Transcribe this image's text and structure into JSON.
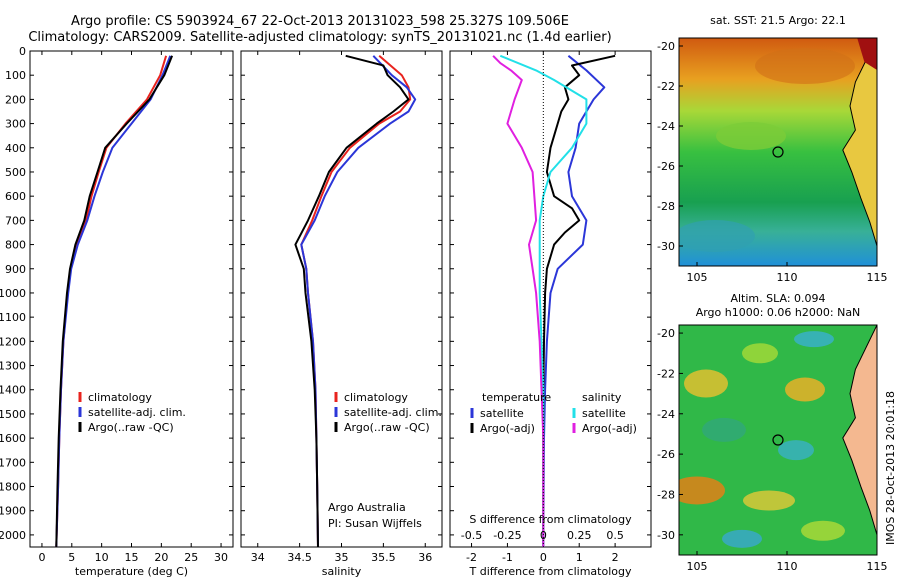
{
  "title_line1": "Argo profile: CS 5903924_67 22-Oct-2013 20131023_598 25.327S 109.506E",
  "title_line2": "Climatology: CARS2009. Satellite-adjusted climatology: synTS_20131021.nc (1.4d earlier)",
  "colors": {
    "climatology": "#e8231e",
    "satellite": "#2b36d8",
    "argo": "#000000",
    "sat_salinity": "#22e0e8",
    "argo_adj_salinity": "#e020e0"
  },
  "chart_data": [
    {
      "type": "line",
      "name": "temperature",
      "xlabel": "temperature (deg C)",
      "ylabel": "",
      "xlim": [
        -2,
        32
      ],
      "ylim": [
        2050,
        0
      ],
      "xticks": [
        "0",
        "5",
        "10",
        "15",
        "20",
        "25",
        "30"
      ],
      "yticks": [
        "0",
        "100",
        "200",
        "300",
        "400",
        "500",
        "600",
        "700",
        "800",
        "900",
        "1000",
        "1100",
        "1200",
        "1300",
        "1400",
        "1500",
        "1600",
        "1700",
        "1800",
        "1900",
        "2000"
      ],
      "legend": [
        "climatology",
        "satellite-adj. clim.",
        "Argo(..raw -QC)"
      ],
      "series": [
        {
          "name": "climatology",
          "depth": [
            20,
            100,
            200,
            300,
            400,
            500,
            600,
            700,
            800,
            900,
            1000,
            1200,
            1400,
            1600,
            1800,
            2050
          ],
          "values": [
            20.8,
            19.8,
            17.6,
            14.0,
            10.8,
            9.5,
            8.3,
            7.4,
            5.8,
            4.8,
            4.3,
            3.6,
            3.2,
            2.9,
            2.7,
            2.4
          ]
        },
        {
          "name": "satellite-adj. clim.",
          "depth": [
            20,
            100,
            200,
            300,
            400,
            500,
            600,
            700,
            800,
            900,
            1000,
            1200,
            1400,
            1600,
            1800,
            2050
          ],
          "values": [
            21.5,
            20.2,
            18.2,
            15.0,
            11.8,
            10.2,
            8.8,
            7.6,
            6.0,
            4.9,
            4.4,
            3.6,
            3.2,
            2.9,
            2.7,
            2.4
          ]
        },
        {
          "name": "Argo(..raw -QC)",
          "depth": [
            20,
            100,
            200,
            300,
            400,
            500,
            600,
            700,
            800,
            900,
            1000,
            1200,
            1400,
            1600,
            1800,
            2050
          ],
          "values": [
            21.8,
            20.5,
            18.0,
            14.2,
            10.6,
            9.3,
            8.0,
            7.1,
            5.6,
            4.7,
            4.2,
            3.5,
            3.1,
            2.8,
            2.6,
            2.4
          ]
        }
      ]
    },
    {
      "type": "line",
      "name": "salinity",
      "xlabel": "salinity",
      "ylabel": "",
      "xlim": [
        33.8,
        36.2
      ],
      "ylim": [
        2050,
        0
      ],
      "xticks": [
        "34",
        "34.5",
        "35",
        "35.5",
        "36"
      ],
      "legend": [
        "climatology",
        "satellite-adj. clim.",
        "Argo(..raw -QC)"
      ],
      "annotation": [
        "Argo Australia",
        "PI: Susan Wijffels"
      ],
      "series": [
        {
          "name": "climatology",
          "depth": [
            20,
            100,
            150,
            200,
            250,
            300,
            400,
            500,
            600,
            700,
            800,
            900,
            1000,
            1200,
            1400,
            1600,
            1800,
            2050
          ],
          "values": [
            35.45,
            35.72,
            35.8,
            35.82,
            35.7,
            35.45,
            35.1,
            34.88,
            34.76,
            34.65,
            34.52,
            34.58,
            34.6,
            34.66,
            34.69,
            34.7,
            34.71,
            34.72
          ]
        },
        {
          "name": "satellite-adj. clim.",
          "depth": [
            20,
            100,
            150,
            200,
            250,
            300,
            400,
            500,
            600,
            700,
            800,
            900,
            1000,
            1200,
            1400,
            1600,
            1800,
            2050
          ],
          "values": [
            35.38,
            35.6,
            35.78,
            35.88,
            35.8,
            35.58,
            35.2,
            34.95,
            34.8,
            34.68,
            34.52,
            34.58,
            34.6,
            34.66,
            34.69,
            34.7,
            34.71,
            34.72
          ]
        },
        {
          "name": "Argo(..raw -QC)",
          "depth": [
            20,
            60,
            100,
            150,
            200,
            250,
            300,
            400,
            500,
            600,
            700,
            800,
            900,
            1000,
            1200,
            1400,
            1600,
            1800,
            2050
          ],
          "values": [
            35.05,
            35.5,
            35.55,
            35.7,
            35.8,
            35.62,
            35.42,
            35.06,
            34.85,
            34.73,
            34.6,
            34.45,
            34.55,
            34.57,
            34.64,
            34.68,
            34.7,
            34.71,
            34.72
          ]
        }
      ]
    },
    {
      "type": "line",
      "name": "difference",
      "xlabel_top": "S difference from climatology",
      "xlabel": "T difference from climatology",
      "xlim": [
        -2.6,
        3.0
      ],
      "ylim": [
        2050,
        0
      ],
      "xticks": [
        "-2",
        "-1",
        "0",
        "1",
        "2"
      ],
      "xticks_top": [
        "-0.5",
        "-0.25",
        "0",
        "0.25",
        "0.5"
      ],
      "legend_left_title": "temperature",
      "legend_right_title": "salinity",
      "legend": [
        "satellite",
        "Argo(-adj)",
        "satellite",
        "Argo(-adj)"
      ],
      "series": [
        {
          "name": "T satellite",
          "depth": [
            20,
            80,
            150,
            200,
            300,
            400,
            500,
            600,
            700,
            800,
            900,
            1000,
            1200,
            1400,
            1600,
            2050
          ],
          "values": [
            0.7,
            1.2,
            1.7,
            1.4,
            1.0,
            0.9,
            0.7,
            0.8,
            1.2,
            1.1,
            0.4,
            0.2,
            0.1,
            0.05,
            0.02,
            0.0
          ]
        },
        {
          "name": "T Argo(-adj)",
          "depth": [
            20,
            60,
            100,
            150,
            200,
            250,
            300,
            400,
            500,
            600,
            650,
            700,
            750,
            800,
            900,
            1000,
            1200,
            1400,
            1600,
            2050
          ],
          "values": [
            2.0,
            0.8,
            1.0,
            0.6,
            0.7,
            0.5,
            0.4,
            0.2,
            0.1,
            0.3,
            0.8,
            1.0,
            0.6,
            0.3,
            0.1,
            0.05,
            0.02,
            0.0,
            0.0,
            0.0
          ]
        },
        {
          "name": "S satellite",
          "depth": [
            20,
            80,
            120,
            200,
            300,
            400,
            500,
            600,
            700,
            800,
            1000,
            1200,
            1400,
            1600,
            2050
          ],
          "values": [
            -1.2,
            -0.2,
            0.3,
            1.2,
            1.2,
            0.8,
            0.2,
            0.0,
            -0.1,
            -0.1,
            -0.1,
            -0.05,
            0.0,
            0.0,
            0.0
          ]
        },
        {
          "name": "S Argo(-adj)",
          "depth": [
            20,
            50,
            80,
            120,
            200,
            300,
            400,
            500,
            700,
            800,
            900,
            1000,
            1200,
            1400,
            1600,
            2050
          ],
          "values": [
            -1.4,
            -1.2,
            -0.9,
            -0.6,
            -0.8,
            -1.0,
            -0.6,
            -0.3,
            -0.2,
            -0.4,
            -0.3,
            -0.2,
            -0.1,
            -0.05,
            0.0,
            0.0
          ]
        }
      ]
    },
    {
      "type": "heatmap",
      "name": "sst_map",
      "title": "sat. SST: 21.5 Argo: 22.1",
      "xlim": [
        104,
        115
      ],
      "ylim": [
        -31,
        -19.6
      ],
      "xticks": [
        "105",
        "110",
        "115"
      ],
      "yticks": [
        "-20",
        "-22",
        "-24",
        "-26",
        "-28",
        "-30"
      ],
      "argo_position": {
        "lon": 109.5,
        "lat": -25.3
      }
    },
    {
      "type": "heatmap",
      "name": "sla_map",
      "title_line1": "Altim. SLA: 0.094",
      "title_line2": "Argo h1000: 0.06 h2000: NaN",
      "xlim": [
        104,
        115
      ],
      "ylim": [
        -31,
        -19.6
      ],
      "xticks": [
        "105",
        "110",
        "115"
      ],
      "yticks": [
        "-20",
        "-22",
        "-24",
        "-26",
        "-28",
        "-30"
      ],
      "argo_position": {
        "lon": 109.5,
        "lat": -25.3
      }
    }
  ],
  "stamp": "IMOS 28-Oct-2013 20:01:18"
}
